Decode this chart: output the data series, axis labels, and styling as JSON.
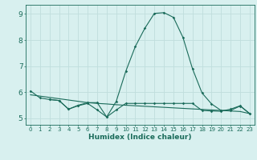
{
  "title": "",
  "xlabel": "Humidex (Indice chaleur)",
  "bg_color": "#d8f0ef",
  "grid_color": "#c0dedd",
  "line_color": "#1a6b5a",
  "x": [
    0,
    1,
    2,
    3,
    4,
    5,
    6,
    7,
    8,
    9,
    10,
    11,
    12,
    13,
    14,
    15,
    16,
    17,
    18,
    19,
    20,
    21,
    22,
    23
  ],
  "line1_y": [
    6.05,
    5.78,
    5.72,
    5.68,
    5.35,
    5.5,
    5.6,
    5.6,
    5.05,
    5.65,
    6.8,
    7.75,
    8.45,
    9.02,
    9.05,
    8.87,
    8.1,
    6.9,
    5.97,
    5.55,
    5.3,
    5.3,
    5.47,
    5.18
  ],
  "line2_y": [
    5.9,
    5.85,
    5.8,
    5.75,
    5.7,
    5.65,
    5.6,
    5.57,
    5.55,
    5.52,
    5.5,
    5.48,
    5.46,
    5.44,
    5.42,
    5.4,
    5.38,
    5.36,
    5.34,
    5.32,
    5.3,
    5.28,
    5.26,
    5.18
  ],
  "line3_y": [
    null,
    null,
    5.72,
    5.68,
    5.35,
    5.48,
    5.57,
    5.32,
    5.05,
    5.32,
    5.57,
    5.57,
    5.57,
    5.57,
    5.57,
    5.57,
    5.57,
    5.57,
    5.3,
    5.28,
    5.27,
    5.35,
    5.48,
    5.18
  ],
  "ylim": [
    4.75,
    9.35
  ],
  "xlim": [
    -0.5,
    23.5
  ],
  "yticks": [
    5,
    6,
    7,
    8,
    9
  ],
  "xticks": [
    0,
    1,
    2,
    3,
    4,
    5,
    6,
    7,
    8,
    9,
    10,
    11,
    12,
    13,
    14,
    15,
    16,
    17,
    18,
    19,
    20,
    21,
    22,
    23
  ]
}
